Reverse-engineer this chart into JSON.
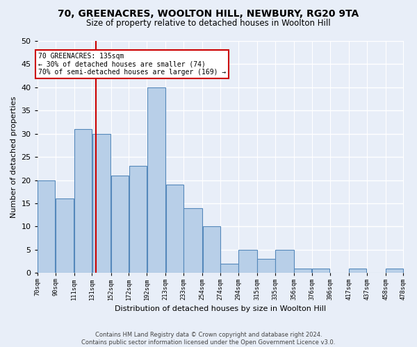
{
  "title": "70, GREENACRES, WOOLTON HILL, NEWBURY, RG20 9TA",
  "subtitle": "Size of property relative to detached houses in Woolton Hill",
  "xlabel": "Distribution of detached houses by size in Woolton Hill",
  "ylabel": "Number of detached properties",
  "footer_line1": "Contains HM Land Registry data © Crown copyright and database right 2024.",
  "footer_line2": "Contains public sector information licensed under the Open Government Licence v3.0.",
  "annotation_title": "70 GREENACRES: 135sqm",
  "annotation_line1": "← 30% of detached houses are smaller (74)",
  "annotation_line2": "70% of semi-detached houses are larger (169) →",
  "bar_edges": [
    70,
    90,
    111,
    131,
    152,
    172,
    192,
    213,
    233,
    254,
    274,
    294,
    315,
    335,
    356,
    376,
    396,
    417,
    437,
    458,
    478
  ],
  "bar_heights": [
    20,
    16,
    31,
    30,
    21,
    23,
    40,
    19,
    14,
    10,
    2,
    5,
    3,
    5,
    1,
    1,
    0,
    1,
    0,
    1
  ],
  "bar_color": "#b8cfe8",
  "bar_edge_color": "#5588bb",
  "tick_labels": [
    "70sqm",
    "90sqm",
    "111sqm",
    "131sqm",
    "152sqm",
    "172sqm",
    "192sqm",
    "213sqm",
    "233sqm",
    "254sqm",
    "274sqm",
    "294sqm",
    "315sqm",
    "335sqm",
    "356sqm",
    "376sqm",
    "396sqm",
    "417sqm",
    "437sqm",
    "458sqm",
    "478sqm"
  ],
  "ylim": [
    0,
    50
  ],
  "yticks": [
    0,
    5,
    10,
    15,
    20,
    25,
    30,
    35,
    40,
    45,
    50
  ],
  "vline_x": 135,
  "vline_color": "#cc0000",
  "bg_color": "#e8eef8",
  "plot_bg_color": "#e8eef8",
  "annotation_box_color": "#cc0000",
  "grid_color": "#ffffff",
  "title_fontsize": 10,
  "subtitle_fontsize": 9
}
